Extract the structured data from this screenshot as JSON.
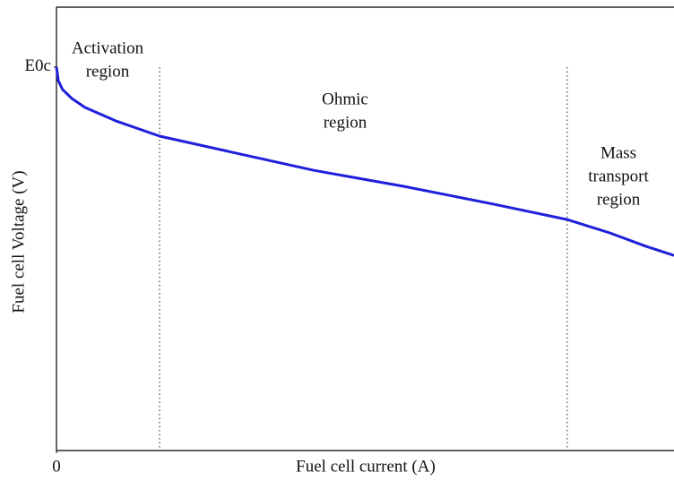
{
  "chart_data": {
    "type": "line",
    "xlabel": "Fuel cell current (A)",
    "ylabel": "Fuel cell Voltage (V)",
    "xlim": [
      0,
      100
    ],
    "ylim": [
      0,
      100
    ],
    "xticks": [
      0
    ],
    "yticks": [
      {
        "value": 86.5,
        "label": "E0c"
      }
    ],
    "series": [
      {
        "color": "#1f1fdc",
        "x": [
          0,
          0.3,
          1.0,
          2.5,
          4.6,
          9.7,
          16.7,
          27.1,
          41.7,
          56.2,
          70.7,
          82.7,
          89.6,
          95.4,
          100
        ],
        "values": [
          86.5,
          83.4,
          81.4,
          79.4,
          77.4,
          74.3,
          70.9,
          67.7,
          63.2,
          59.6,
          55.6,
          52.1,
          49.1,
          46.1,
          44.0
        ]
      }
    ],
    "boundaries": [
      16.7,
      82.7
    ],
    "annotations": [
      {
        "lines": [
          "Activation",
          "region"
        ]
      },
      {
        "lines": [
          "Ohmic",
          "region"
        ]
      },
      {
        "lines": [
          "Mass",
          "transport",
          "region"
        ]
      }
    ]
  }
}
